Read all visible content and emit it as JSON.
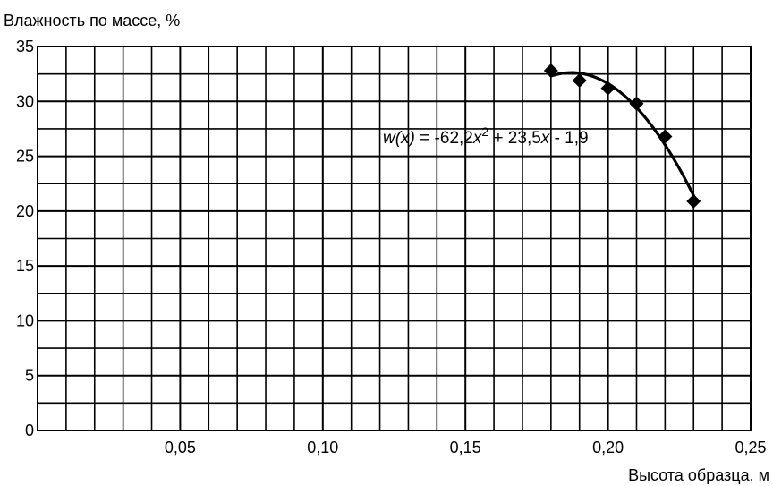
{
  "chart_data": {
    "type": "scatter",
    "title": "",
    "ylabel": "Влажность по массе, %",
    "xlabel": "Высота образца, м",
    "xlim": [
      0,
      0.25
    ],
    "ylim": [
      0,
      35
    ],
    "x_ticks": [
      0.05,
      0.1,
      0.15,
      0.2,
      0.25
    ],
    "x_tick_labels": [
      "0,05",
      "0,10",
      "0,15",
      "0,20",
      "0,25"
    ],
    "y_ticks": [
      0,
      5,
      10,
      15,
      20,
      25,
      30,
      35
    ],
    "y_tick_labels": [
      "0",
      "5",
      "10",
      "15",
      "20",
      "25",
      "30",
      "35"
    ],
    "grid": true,
    "marker": "diamond",
    "series": [
      {
        "x": [
          0.18,
          0.19,
          0.2,
          0.21,
          0.22,
          0.23
        ],
        "y": [
          32.8,
          31.9,
          31.2,
          29.8,
          26.8,
          20.9
        ]
      }
    ],
    "trendline": {
      "type": "polynomial",
      "coefficients": [
        -62.2,
        23.5,
        -1.9
      ],
      "x_range": [
        0.18,
        0.23
      ],
      "equation_parts": {
        "lhs": "w(x)",
        "eq_a": " = -62,2",
        "x1": "x",
        "exp": "2",
        "eq_b": " + 23,5",
        "x2": "x",
        "eq_c": " - 1,9"
      }
    }
  }
}
